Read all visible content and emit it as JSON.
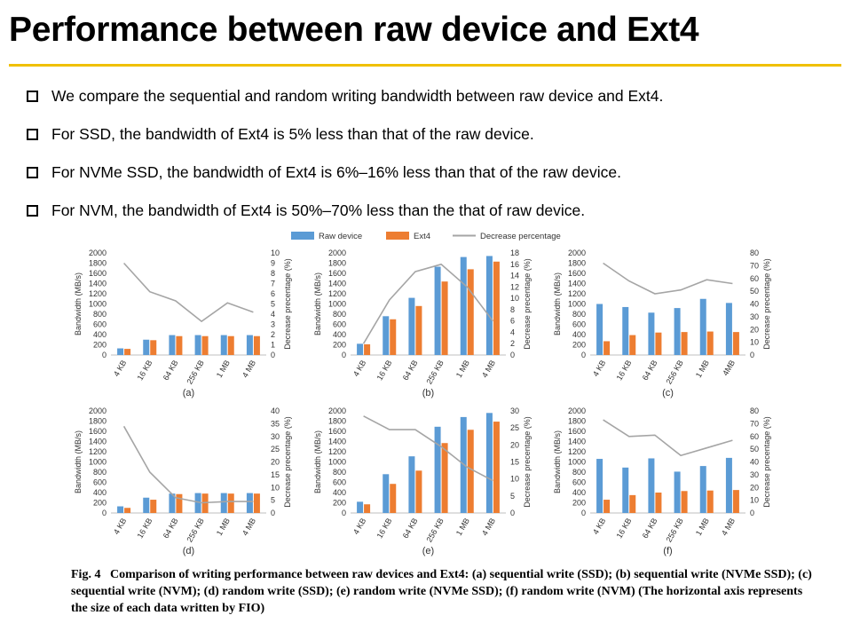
{
  "slide_title": "Performance between raw device and Ext4",
  "bullets": [
    "We compare the sequential and random writing bandwidth between raw device and Ext4.",
    "For SSD, the bandwidth of Ext4 is 5% less than that of the raw device.",
    "For NVMe SSD, the bandwidth of Ext4 is 6%–16% less than that of the raw device.",
    "For NVM, the bandwidth of Ext4 is 50%–70% less than the that of raw device."
  ],
  "legend": [
    {
      "label": "Raw device",
      "color": "#5b9bd5"
    },
    {
      "label": "Ext4",
      "color": "#ed7d31"
    },
    {
      "label": "Decrease percentage",
      "color": "#a5a5a5"
    }
  ],
  "caption": {
    "prefix": "Fig. 4",
    "text": "Comparison of writing performance between raw devices and Ext4: (a) sequential write (SSD); (b) sequential write (NVMe SSD); (c) sequential write (NVM); (d) random write (SSD); (e) random write (NVMe SSD); (f) random write (NVM) (The horizontal axis represents the size of each data written by FIO)"
  },
  "colors": {
    "raw": "#5b9bd5",
    "ext4": "#ed7d31",
    "decrease": "#a5a5a5",
    "accent": "#f0c000"
  },
  "chart_data": [
    {
      "type": "bar",
      "panel": "(a)",
      "ylabel": "Bandwidth (MB/s)",
      "y2label": "Decrease precentage (%)",
      "categories": [
        "4 KB",
        "16 KB",
        "64 KB",
        "256 KB",
        "1 MB",
        "4 MB"
      ],
      "ylim": [
        0,
        2000
      ],
      "yticks": [
        0,
        200,
        400,
        600,
        800,
        1000,
        1200,
        1400,
        1600,
        1800,
        2000
      ],
      "y2lim": [
        0,
        10
      ],
      "y2ticks": [
        0,
        1,
        2,
        3,
        4,
        5,
        6,
        7,
        8,
        9,
        10
      ],
      "series": [
        {
          "name": "Raw device",
          "values": [
            130,
            300,
            390,
            390,
            390,
            390
          ]
        },
        {
          "name": "Ext4",
          "values": [
            120,
            290,
            370,
            370,
            370,
            370
          ]
        },
        {
          "name": "Decrease percentage",
          "axis": "right",
          "values": [
            9.0,
            6.2,
            5.3,
            3.3,
            5.1,
            4.2
          ]
        }
      ]
    },
    {
      "type": "bar",
      "panel": "(b)",
      "ylabel": "Bandwidth (MB/s)",
      "y2label": "Decrease precentage (%)",
      "categories": [
        "4 KB",
        "16 KB",
        "64 KB",
        "256 KB",
        "1 MB",
        "4 MB"
      ],
      "ylim": [
        0,
        2000
      ],
      "yticks": [
        0,
        200,
        400,
        600,
        800,
        1000,
        1200,
        1400,
        1600,
        1800,
        2000
      ],
      "y2lim": [
        0,
        18
      ],
      "y2ticks": [
        0,
        2,
        4,
        6,
        8,
        10,
        12,
        14,
        16,
        18
      ],
      "series": [
        {
          "name": "Raw device",
          "values": [
            220,
            760,
            1120,
            1730,
            1920,
            1940
          ]
        },
        {
          "name": "Ext4",
          "values": [
            210,
            700,
            960,
            1440,
            1680,
            1830
          ]
        },
        {
          "name": "Decrease percentage",
          "axis": "right",
          "values": [
            2.0,
            9.7,
            14.7,
            16.0,
            12.0,
            6.0
          ]
        }
      ]
    },
    {
      "type": "bar",
      "panel": "(c)",
      "ylabel": "Bandwidth (MB/s)",
      "y2label": "Decrease precentage (%)",
      "categories": [
        "4 KB",
        "16 KB",
        "64 KB",
        "256 KB",
        "1 MB",
        "4MB"
      ],
      "ylim": [
        0,
        2000
      ],
      "yticks": [
        0,
        200,
        400,
        600,
        800,
        1000,
        1200,
        1400,
        1600,
        1800,
        2000
      ],
      "y2lim": [
        0,
        80
      ],
      "y2ticks": [
        0,
        10,
        20,
        30,
        40,
        50,
        60,
        70,
        80
      ],
      "series": [
        {
          "name": "Raw device",
          "values": [
            1000,
            940,
            830,
            920,
            1100,
            1020
          ]
        },
        {
          "name": "Ext4",
          "values": [
            270,
            390,
            440,
            450,
            460,
            450
          ]
        },
        {
          "name": "Decrease percentage",
          "axis": "right",
          "values": [
            72,
            58,
            48,
            51,
            59,
            56
          ]
        }
      ]
    },
    {
      "type": "bar",
      "panel": "(d)",
      "ylabel": "Bandwidth (MB/s)",
      "y2label": "Decrease precentage (%)",
      "categories": [
        "4 KB",
        "16 KB",
        "64 KB",
        "256 KB",
        "1 MB",
        "4 MB"
      ],
      "ylim": [
        0,
        2000
      ],
      "yticks": [
        0,
        200,
        400,
        600,
        800,
        1000,
        1200,
        1400,
        1600,
        1800,
        2000
      ],
      "y2lim": [
        0,
        40
      ],
      "y2ticks": [
        0,
        5,
        10,
        15,
        20,
        25,
        30,
        35,
        40
      ],
      "series": [
        {
          "name": "Raw device",
          "values": [
            130,
            300,
            380,
            390,
            390,
            390
          ]
        },
        {
          "name": "Ext4",
          "values": [
            100,
            260,
            370,
            380,
            380,
            380
          ]
        },
        {
          "name": "Decrease percentage",
          "axis": "right",
          "values": [
            34,
            16,
            6,
            4,
            4.5,
            4.5
          ]
        }
      ]
    },
    {
      "type": "bar",
      "panel": "(e)",
      "ylabel": "Bandwidth (MB/s)",
      "y2label": "Decrease precentage (%)",
      "categories": [
        "4 KB",
        "16 KB",
        "64 KB",
        "256 KB",
        "1 MB",
        "4 MB"
      ],
      "ylim": [
        0,
        2000
      ],
      "yticks": [
        0,
        200,
        400,
        600,
        800,
        1000,
        1200,
        1400,
        1600,
        1800,
        2000
      ],
      "y2lim": [
        0,
        30
      ],
      "y2ticks": [
        0,
        5,
        10,
        15,
        20,
        25,
        30
      ],
      "series": [
        {
          "name": "Raw device",
          "values": [
            220,
            760,
            1110,
            1690,
            1880,
            1960
          ]
        },
        {
          "name": "Ext4",
          "values": [
            170,
            570,
            830,
            1370,
            1630,
            1790
          ]
        },
        {
          "name": "Decrease percentage",
          "axis": "right",
          "values": [
            28.5,
            24.5,
            24.5,
            19.5,
            13.5,
            9.5
          ]
        }
      ]
    },
    {
      "type": "bar",
      "panel": "(f)",
      "ylabel": "Bandwidth (MB/s)",
      "y2label": "Decrease precentage (%)",
      "categories": [
        "4 KB",
        "16 KB",
        "64 KB",
        "256 KB",
        "1 MB",
        "4 MB"
      ],
      "ylim": [
        0,
        2000
      ],
      "yticks": [
        0,
        200,
        400,
        600,
        800,
        1000,
        1200,
        1400,
        1600,
        1800,
        2000
      ],
      "y2lim": [
        0,
        80
      ],
      "y2ticks": [
        0,
        10,
        20,
        30,
        40,
        50,
        60,
        70,
        80
      ],
      "series": [
        {
          "name": "Raw device",
          "values": [
            1060,
            890,
            1070,
            810,
            920,
            1080
          ]
        },
        {
          "name": "Ext4",
          "values": [
            260,
            350,
            400,
            430,
            440,
            450
          ]
        },
        {
          "name": "Decrease percentage",
          "axis": "right",
          "values": [
            73,
            60,
            61,
            45,
            51,
            57
          ]
        }
      ]
    }
  ]
}
